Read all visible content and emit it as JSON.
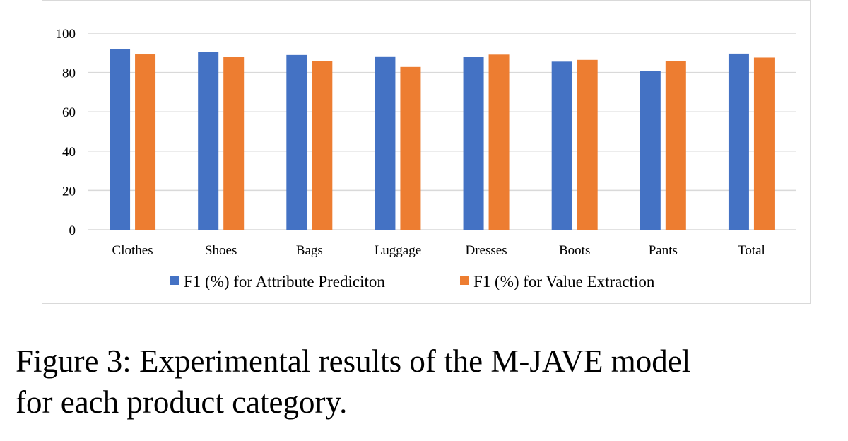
{
  "caption": {
    "line1": "Figure 3:  Experimental results of the M-JAVE model",
    "line2": "for each product category."
  },
  "chart_data": {
    "type": "bar",
    "categories": [
      "Clothes",
      "Shoes",
      "Bags",
      "Luggage",
      "Dresses",
      "Boots",
      "Pants",
      "Total"
    ],
    "series": [
      {
        "name": "F1 (%) for Attribute Prediciton",
        "color": "#4472c4",
        "values": [
          91.8,
          90.3,
          88.9,
          88.2,
          88.1,
          85.5,
          80.7,
          89.6
        ]
      },
      {
        "name": "F1 (%) for Value Extraction",
        "color": "#ed7d31",
        "values": [
          89.2,
          88.0,
          85.8,
          82.8,
          89.1,
          86.4,
          85.8,
          87.6
        ]
      }
    ],
    "ylim": [
      0,
      100
    ],
    "yticks": [
      0,
      20,
      40,
      60,
      80,
      100
    ],
    "ytick_labels": [
      "0",
      "20",
      "40",
      "60",
      "80",
      "100"
    ],
    "grid": true,
    "legend_position": "bottom",
    "title": "",
    "xlabel": "",
    "ylabel": ""
  }
}
